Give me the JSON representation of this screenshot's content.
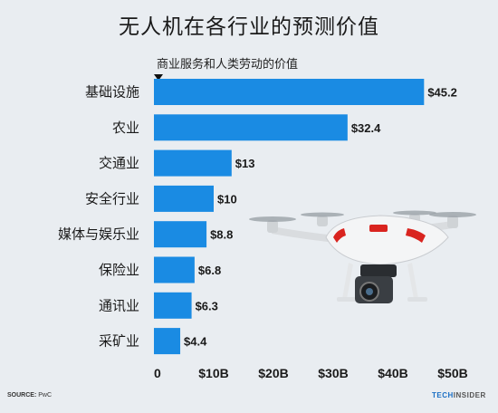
{
  "title": "无人机在各行业的预测价值",
  "subtitle": "商业服务和人类劳动的价值",
  "source_label": "SOURCE:",
  "source_value": "PwC",
  "brand": {
    "part1": "TECH",
    "part2": "INSIDER"
  },
  "colors": {
    "bar": "#1a8be3",
    "background": "#e9edf1"
  },
  "image": "quadcopter-drone-photo",
  "chart_data": {
    "type": "bar",
    "orientation": "horizontal",
    "categories": [
      "基础设施",
      "农业",
      "交通业",
      "安全行业",
      "媒体与娱乐业",
      "保险业",
      "通讯业",
      "采矿业"
    ],
    "values": [
      45.2,
      32.4,
      13,
      10,
      8.8,
      6.8,
      6.3,
      4.4
    ],
    "value_labels": [
      "$45.2",
      "$32.4",
      "$13",
      "$10",
      "$8.8",
      "$6.8",
      "$6.3",
      "$4.4"
    ],
    "x_ticks": [
      0,
      10,
      20,
      30,
      40,
      50
    ],
    "x_tick_labels": [
      "0",
      "$10B",
      "$20B",
      "$30B",
      "$40B",
      "$50B"
    ],
    "xlim": [
      0,
      50
    ],
    "grid": false
  }
}
